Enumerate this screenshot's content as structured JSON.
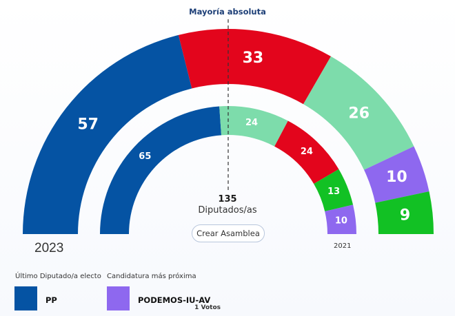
{
  "chart_data": {
    "type": "hemicycle",
    "majority_label": "Mayoría absoluta",
    "total_seats": "135",
    "seats_unit": "Diputados/as",
    "create_button_label": "Crear Asamblea",
    "outer": {
      "year": "2023",
      "series": [
        {
          "value": 57,
          "color": "#0553a3"
        },
        {
          "value": 33,
          "color": "#e3051c"
        },
        {
          "value": 26,
          "color": "#7ddcab"
        },
        {
          "value": 10,
          "color": "#8e68ef"
        },
        {
          "value": 9,
          "color": "#12c124"
        }
      ]
    },
    "inner": {
      "year": "2021",
      "series": [
        {
          "value": 65,
          "color": "#0553a3"
        },
        {
          "value": 24,
          "color": "#7ddcab"
        },
        {
          "value": 24,
          "color": "#e3051c"
        },
        {
          "value": 13,
          "color": "#12c124"
        },
        {
          "value": 10,
          "color": "#8e68ef"
        }
      ]
    }
  },
  "legend": {
    "last_elected_title": "Último Diputado/a electo",
    "last_elected_party": "PP",
    "last_elected_color": "#0553a3",
    "next_candidate_title": "Candidatura más próxima",
    "next_candidate_party": "PODEMOS-IU-AV",
    "next_candidate_votes": "1 Votos",
    "next_candidate_color": "#8e68ef"
  }
}
